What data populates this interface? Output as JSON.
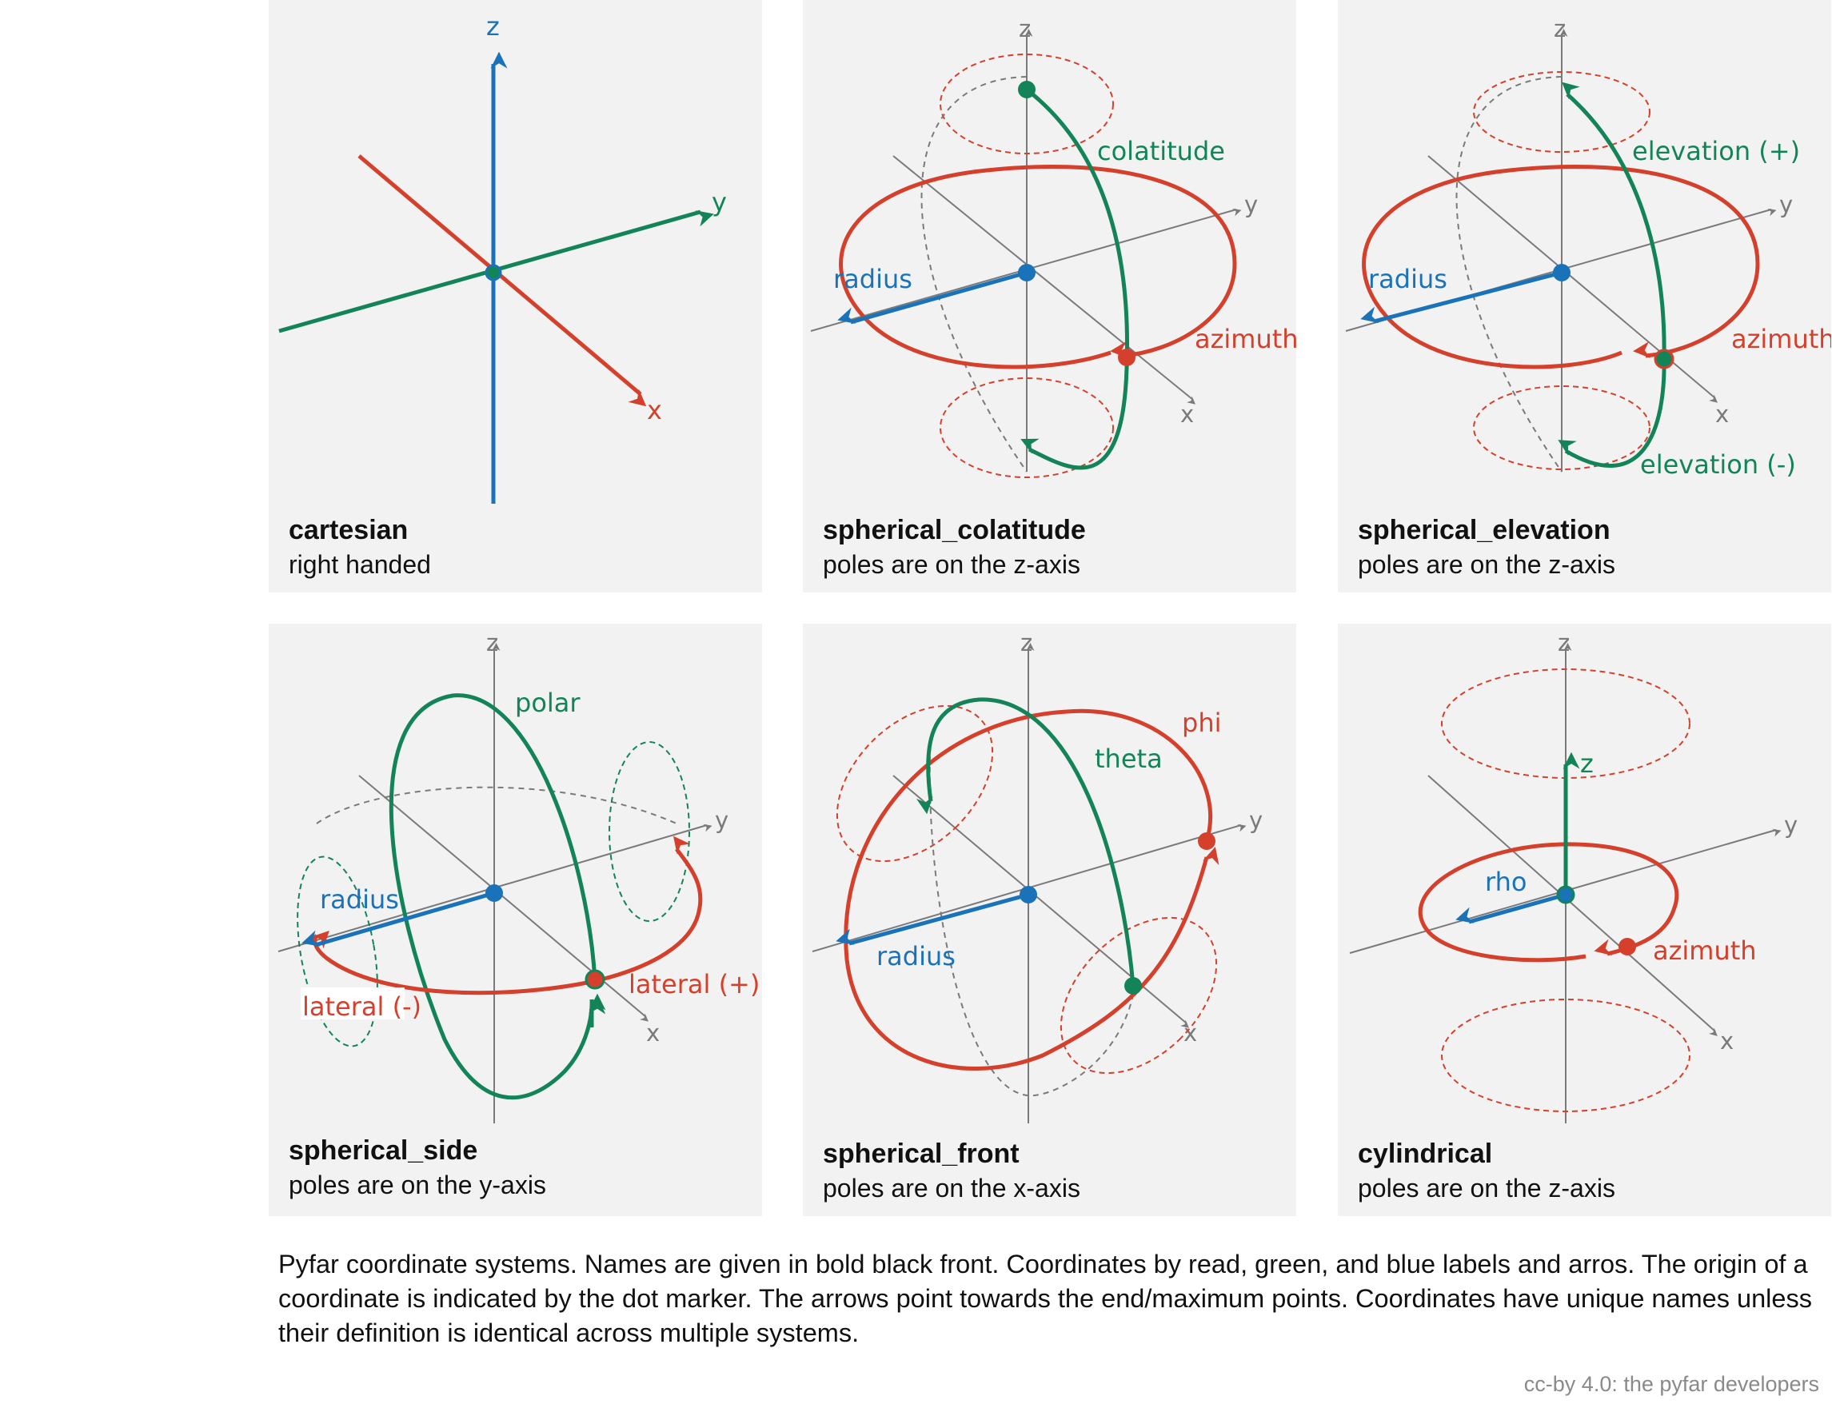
{
  "colors": {
    "red": "#d4402b",
    "green": "#138457",
    "blue": "#1a73b8",
    "gray": "#7a7a7a",
    "panel": "#f2f2f2"
  },
  "axis_labels": {
    "x": "x",
    "y": "y",
    "z": "z"
  },
  "panels": [
    {
      "name": "cartesian",
      "desc": "right handed",
      "labels": {}
    },
    {
      "name": "spherical_colatitude",
      "desc": "poles are on the z-axis",
      "labels": {
        "radius": "radius",
        "colatitude": "colatitude",
        "azimuth": "azimuth"
      }
    },
    {
      "name": "spherical_elevation",
      "desc": "poles are on the z-axis",
      "labels": {
        "radius": "radius",
        "elev_pos": "elevation (+)",
        "elev_neg": "elevation (-)",
        "azimuth": "azimuth"
      }
    },
    {
      "name": "spherical_side",
      "desc": "poles are on the y-axis",
      "labels": {
        "radius": "radius",
        "polar": "polar",
        "lat_pos": "lateral (+)",
        "lat_neg": "lateral (-)"
      }
    },
    {
      "name": "spherical_front",
      "desc": "poles are on the x-axis",
      "labels": {
        "radius": "radius",
        "theta": "theta",
        "phi": "phi"
      }
    },
    {
      "name": "cylindrical",
      "desc": "poles are on the z-axis",
      "labels": {
        "rho": "rho",
        "z": "z",
        "azimuth": "azimuth"
      }
    }
  ],
  "caption": "Pyfar coordinate systems. Names are given in bold black front. Coordinates by read, green, and blue labels and arros. The origin of a coordinate is indicated by the dot marker. The arrows point towards the end/maximum points. Coordinates have unique names unless their definition is identical across multiple systems.",
  "credit": "cc-by 4.0: the pyfar developers"
}
